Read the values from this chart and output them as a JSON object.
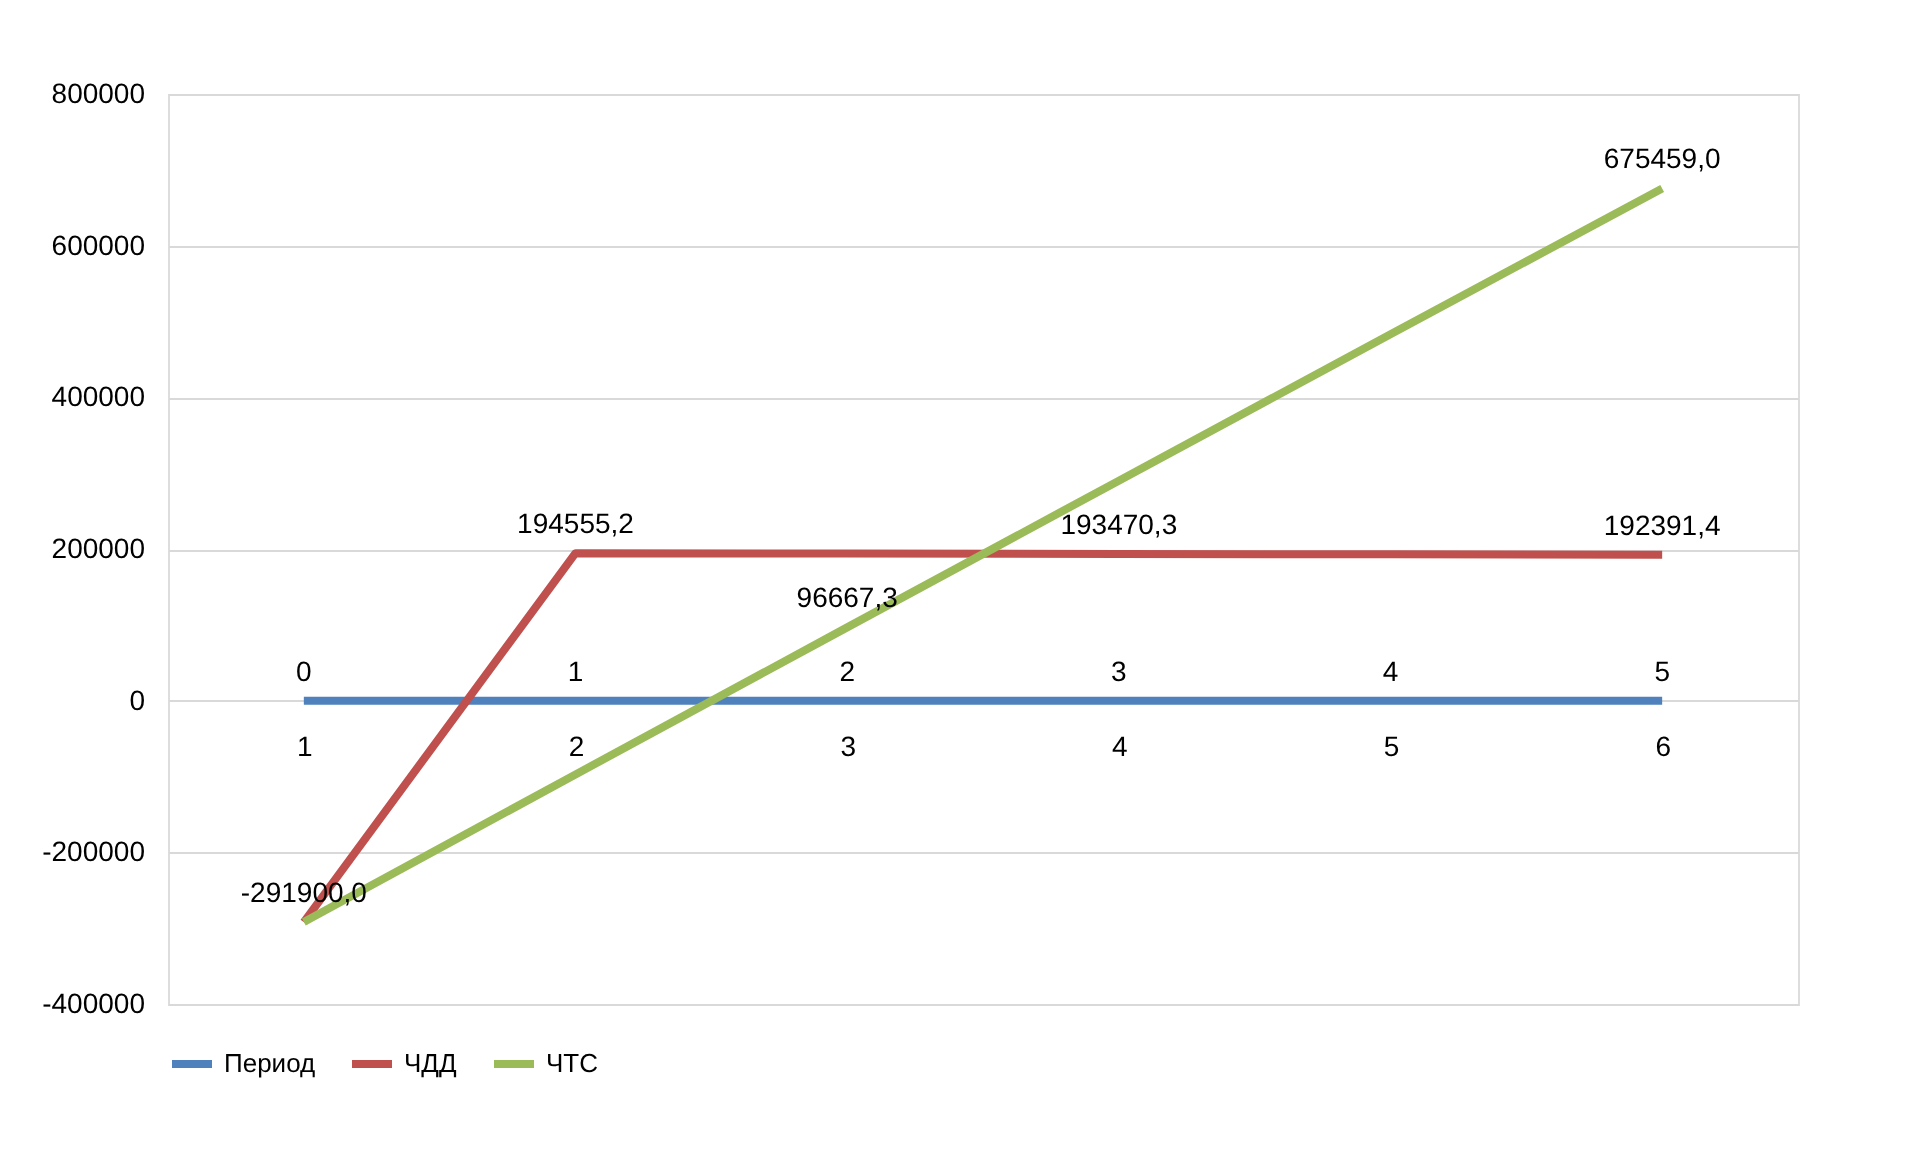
{
  "chart_data": {
    "type": "line",
    "categories": [
      "1",
      "2",
      "3",
      "4",
      "5",
      "6"
    ],
    "series": [
      {
        "name": "Период",
        "color": "#4f81bd",
        "values": [
          0,
          1,
          2,
          3,
          4,
          5
        ],
        "value_labels": [
          "0",
          "1",
          "2",
          "3",
          "4",
          "5"
        ]
      },
      {
        "name": "ЧДД",
        "color": "#c0504d",
        "values": [
          -291900.0,
          194555.2,
          194012,
          193470.3,
          192931,
          192391.4
        ],
        "value_labels": [
          "-291900,0",
          "194555,2",
          null,
          "193470,3",
          null,
          "192391,4"
        ]
      },
      {
        "name": "ЧТС",
        "color": "#9bbb59",
        "values": [
          -291900,
          -97345,
          96667.3,
          290138,
          483068,
          675459.0
        ],
        "value_labels": [
          null,
          null,
          "96667,3",
          null,
          null,
          "675459,0"
        ]
      }
    ],
    "ylim": [
      -400000,
      800000
    ],
    "yticks": [
      -400000,
      -200000,
      0,
      200000,
      400000,
      600000,
      800000
    ],
    "grid": "y",
    "legend": "bottom",
    "marker": "none",
    "line_style": "solid"
  }
}
